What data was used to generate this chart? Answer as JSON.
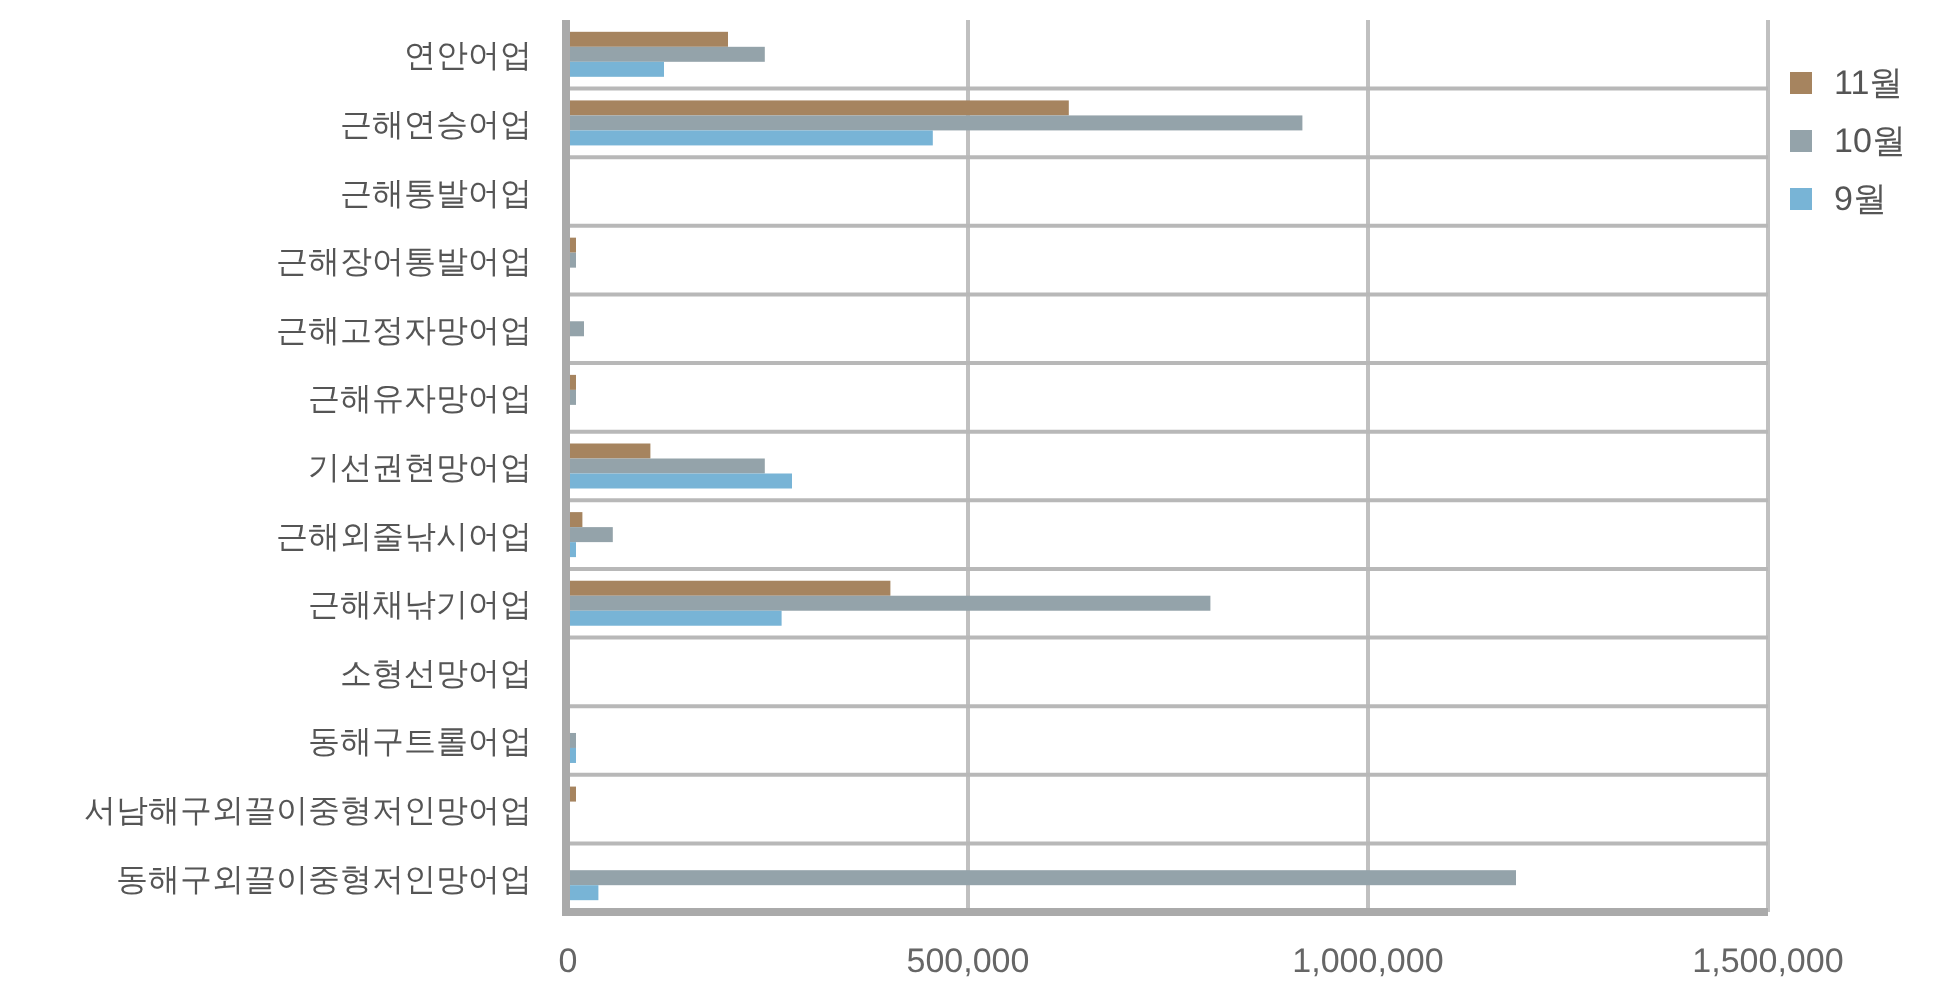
{
  "chart_data": {
    "type": "bar",
    "orientation": "horizontal",
    "grid": true,
    "legend": "top right",
    "categories": [
      "연안어업",
      "근해연승어업",
      "근해통발어업",
      "근해장어통발어업",
      "근해고정자망어업",
      "근해유자망어업",
      "기선권현망어업",
      "근해외줄낚시어업",
      "근해채낚기어업",
      "소형선망어업",
      "동해구트롤어업",
      "서남해구외끌이중형저인망어업",
      "동해구외끌이중형저인망어업"
    ],
    "series": [
      {
        "name": "11월",
        "color": "#a6845f",
        "values": [
          200000,
          626000,
          0,
          10000,
          0,
          10000,
          103000,
          18000,
          403000,
          0,
          0,
          10000,
          0
        ]
      },
      {
        "name": "10월",
        "color": "#94a3aa",
        "values": [
          246000,
          918000,
          0,
          10000,
          20000,
          10000,
          246000,
          56000,
          803000,
          0,
          10000,
          0,
          1185000
        ]
      },
      {
        "name": "9월",
        "color": "#78b4d6",
        "values": [
          120000,
          456000,
          0,
          0,
          0,
          0,
          280000,
          10000,
          267000,
          0,
          10000,
          0,
          38000
        ]
      }
    ],
    "xlim": [
      0,
      1500000
    ],
    "xticks": [
      {
        "value": 0,
        "label": "0"
      },
      {
        "value": 500000,
        "label": "500,000"
      },
      {
        "value": 1000000,
        "label": "1,000,000"
      },
      {
        "value": 1500000,
        "label": "1,500,000"
      }
    ]
  }
}
